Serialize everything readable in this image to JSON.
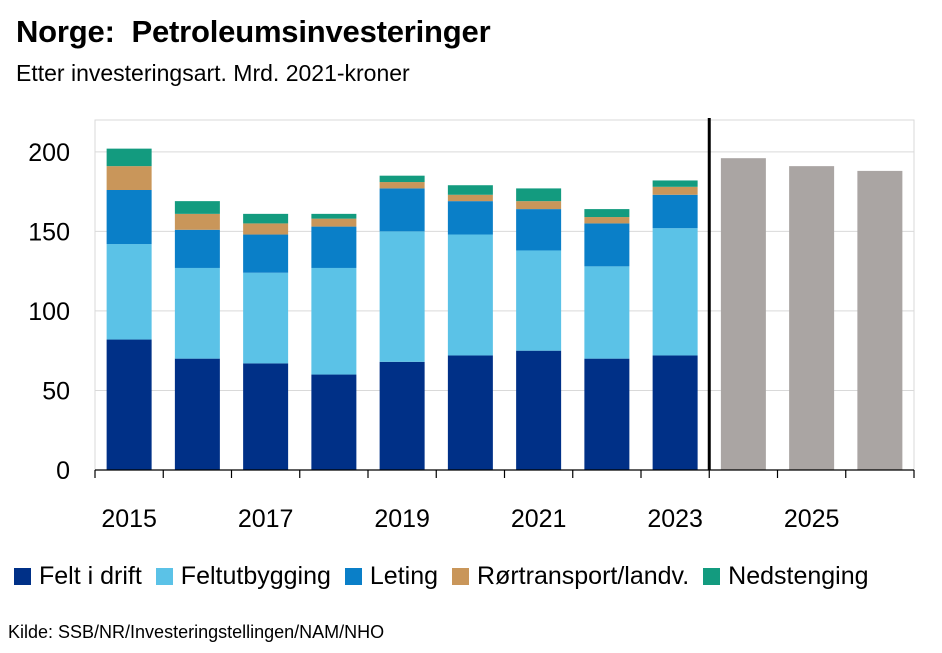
{
  "title": "Norge:  Petroleumsinvesteringer",
  "subtitle": "Etter investeringsart. Mrd. 2021-kroner",
  "source": "Kilde: SSB/NR/Investeringstellingen/NAM/NHO",
  "colors": {
    "felt_i_drift": "#003087",
    "feltutbygging": "#5bc2e7",
    "leting": "#0a7fc8",
    "rortransport": "#c9965a",
    "nedstenging": "#139b7f",
    "forecast": "#aaa5a3",
    "divider": "#000000",
    "grid": "#d9d9d9"
  },
  "chart_data": {
    "type": "bar",
    "stacked": true,
    "categories": [
      "2015",
      "2016",
      "2017",
      "2018",
      "2019",
      "2020",
      "2021",
      "2022",
      "2023",
      "2024",
      "2025",
      "2026"
    ],
    "x_tick_labels": [
      "2015",
      "2017",
      "2019",
      "2021",
      "2023",
      "2025"
    ],
    "ylim": [
      0,
      220
    ],
    "yticks": [
      0,
      50,
      100,
      150,
      200
    ],
    "grid": true,
    "legend_position": "bottom",
    "series": [
      {
        "name": "Felt i drift",
        "color_key": "felt_i_drift",
        "values": [
          82,
          70,
          67,
          60,
          68,
          72,
          75,
          70,
          72,
          null,
          null,
          null
        ]
      },
      {
        "name": "Feltutbygging",
        "color_key": "feltutbygging",
        "values": [
          60,
          57,
          57,
          67,
          82,
          76,
          63,
          58,
          80,
          null,
          null,
          null
        ]
      },
      {
        "name": "Leting",
        "color_key": "leting",
        "values": [
          34,
          24,
          24,
          26,
          27,
          21,
          26,
          27,
          21,
          null,
          null,
          null
        ]
      },
      {
        "name": "Rørtransport/landv.",
        "color_key": "rortransport",
        "values": [
          15,
          10,
          7,
          5,
          4,
          4,
          5,
          4,
          5,
          null,
          null,
          null
        ]
      },
      {
        "name": "Nedstenging",
        "color_key": "nedstenging",
        "values": [
          11,
          8,
          6,
          3,
          4,
          6,
          8,
          5,
          4,
          null,
          null,
          null
        ]
      }
    ],
    "forecast": {
      "color_key": "forecast",
      "values": [
        null,
        null,
        null,
        null,
        null,
        null,
        null,
        null,
        null,
        196,
        191,
        188
      ]
    },
    "divider_after_category": "2023"
  }
}
